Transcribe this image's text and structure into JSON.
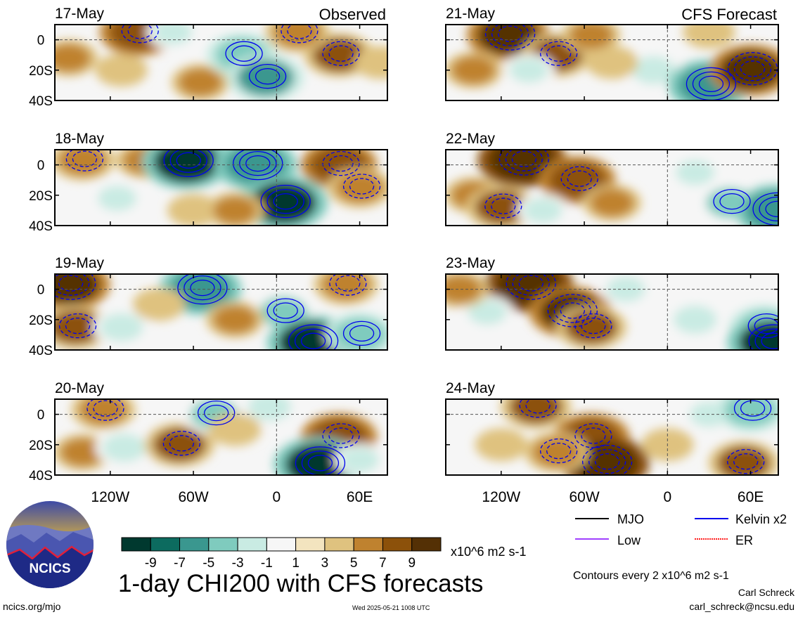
{
  "chart_data": {
    "type": "heatmap",
    "title": "1-day CHI200 with CFS forecasts",
    "units": "x10^6 m2 s-1",
    "contour_note": "Contours every 2 x10^6 m2 s-1",
    "columns": [
      {
        "label": "Observed",
        "panels": [
          {
            "date": "17-May",
            "blobs": [
              {
                "lon": -100,
                "lat": 5,
                "v": 7
              },
              {
                "lon": -150,
                "lat": -12,
                "v": 4
              },
              {
                "lon": -112,
                "lat": -20,
                "v": 3
              },
              {
                "lon": -55,
                "lat": -28,
                "v": 4
              },
              {
                "lon": -25,
                "lat": -10,
                "v": -6
              },
              {
                "lon": -8,
                "lat": -25,
                "v": -7
              },
              {
                "lon": 45,
                "lat": -10,
                "v": 6
              },
              {
                "lon": 15,
                "lat": 5,
                "v": 5
              },
              {
                "lon": 75,
                "lat": -15,
                "v": 3
              },
              {
                "lon": -75,
                "lat": 5,
                "v": -3
              }
            ]
          },
          {
            "date": "18-May",
            "blobs": [
              {
                "lon": -140,
                "lat": 3,
                "v": 5
              },
              {
                "lon": -95,
                "lat": 3,
                "v": 4
              },
              {
                "lon": -65,
                "lat": 2,
                "v": -9
              },
              {
                "lon": -15,
                "lat": 0,
                "v": -8
              },
              {
                "lon": 5,
                "lat": -25,
                "v": -9
              },
              {
                "lon": 45,
                "lat": 0,
                "v": 7
              },
              {
                "lon": 60,
                "lat": -15,
                "v": 5
              },
              {
                "lon": -115,
                "lat": -22,
                "v": -3
              },
              {
                "lon": -60,
                "lat": -30,
                "v": 3
              },
              {
                "lon": -30,
                "lat": -30,
                "v": 4
              }
            ]
          },
          {
            "date": "19-May",
            "blobs": [
              {
                "lon": -150,
                "lat": 3,
                "v": 8
              },
              {
                "lon": -145,
                "lat": -25,
                "v": 6
              },
              {
                "lon": -112,
                "lat": -25,
                "v": -4
              },
              {
                "lon": -55,
                "lat": 0,
                "v": -8
              },
              {
                "lon": 5,
                "lat": -15,
                "v": -5
              },
              {
                "lon": 25,
                "lat": -35,
                "v": -9
              },
              {
                "lon": 60,
                "lat": -30,
                "v": -6
              },
              {
                "lon": -30,
                "lat": -20,
                "v": 4
              },
              {
                "lon": 50,
                "lat": 3,
                "v": 5
              },
              {
                "lon": -85,
                "lat": -10,
                "v": 3
              }
            ]
          },
          {
            "date": "20-May",
            "blobs": [
              {
                "lon": -125,
                "lat": 3,
                "v": 5
              },
              {
                "lon": -140,
                "lat": -25,
                "v": 4
              },
              {
                "lon": -110,
                "lat": -22,
                "v": -4
              },
              {
                "lon": -70,
                "lat": -20,
                "v": 6
              },
              {
                "lon": -45,
                "lat": 0,
                "v": -5
              },
              {
                "lon": -5,
                "lat": 5,
                "v": -4
              },
              {
                "lon": 45,
                "lat": -15,
                "v": 7
              },
              {
                "lon": 30,
                "lat": -33,
                "v": -9
              },
              {
                "lon": -30,
                "lat": -10,
                "v": 3
              },
              {
                "lon": 60,
                "lat": -30,
                "v": -3
              }
            ]
          }
        ]
      },
      {
        "label": "CFS Forecast",
        "panels": [
          {
            "date": "21-May",
            "blobs": [
              {
                "lon": -115,
                "lat": 3,
                "v": 8
              },
              {
                "lon": -80,
                "lat": -10,
                "v": 6
              },
              {
                "lon": -140,
                "lat": -20,
                "v": 4
              },
              {
                "lon": -100,
                "lat": -20,
                "v": -3
              },
              {
                "lon": -10,
                "lat": -20,
                "v": -4
              },
              {
                "lon": 30,
                "lat": -30,
                "v": -8
              },
              {
                "lon": 60,
                "lat": -20,
                "v": 8
              },
              {
                "lon": -40,
                "lat": -15,
                "v": 3
              },
              {
                "lon": 30,
                "lat": 5,
                "v": 3
              },
              {
                "lon": -55,
                "lat": 3,
                "v": 4
              }
            ]
          },
          {
            "date": "22-May",
            "blobs": [
              {
                "lon": -105,
                "lat": 3,
                "v": 9
              },
              {
                "lon": -65,
                "lat": -10,
                "v": 7
              },
              {
                "lon": -140,
                "lat": -20,
                "v": 4
              },
              {
                "lon": -120,
                "lat": -28,
                "v": 6
              },
              {
                "lon": -90,
                "lat": -30,
                "v": -3
              },
              {
                "lon": 20,
                "lat": -5,
                "v": -3
              },
              {
                "lon": 45,
                "lat": -25,
                "v": -5
              },
              {
                "lon": 78,
                "lat": -30,
                "v": -8
              },
              {
                "lon": -40,
                "lat": -25,
                "v": 4
              }
            ]
          },
          {
            "date": "23-May",
            "blobs": [
              {
                "lon": -100,
                "lat": 3,
                "v": 9
              },
              {
                "lon": -70,
                "lat": -15,
                "v": 8
              },
              {
                "lon": -55,
                "lat": -25,
                "v": 6
              },
              {
                "lon": -130,
                "lat": -15,
                "v": -3
              },
              {
                "lon": -30,
                "lat": 0,
                "v": -3
              },
              {
                "lon": 20,
                "lat": -20,
                "v": -4
              },
              {
                "lon": 70,
                "lat": -25,
                "v": -6
              },
              {
                "lon": 75,
                "lat": -35,
                "v": -9
              },
              {
                "lon": -150,
                "lat": 0,
                "v": 4
              }
            ]
          },
          {
            "date": "24-May",
            "blobs": [
              {
                "lon": -95,
                "lat": 5,
                "v": 6
              },
              {
                "lon": -55,
                "lat": -15,
                "v": 7
              },
              {
                "lon": -45,
                "lat": -32,
                "v": 9
              },
              {
                "lon": -120,
                "lat": -20,
                "v": 3
              },
              {
                "lon": -80,
                "lat": -25,
                "v": 5
              },
              {
                "lon": 30,
                "lat": 0,
                "v": -3
              },
              {
                "lon": 60,
                "lat": 3,
                "v": -6
              },
              {
                "lon": 55,
                "lat": -32,
                "v": 6
              },
              {
                "lon": 0,
                "lat": -20,
                "v": 3
              }
            ]
          }
        ]
      }
    ],
    "x_ticks": [
      {
        "label": "120W",
        "lon": -120
      },
      {
        "label": "60W",
        "lon": -60
      },
      {
        "label": "0",
        "lon": 0
      },
      {
        "label": "60E",
        "lon": 60
      }
    ],
    "y_ticks": [
      {
        "label": "0",
        "lat": 0
      },
      {
        "label": "20S",
        "lat": -20
      },
      {
        "label": "40S",
        "lat": -40
      }
    ],
    "xlim": [
      -160,
      80
    ],
    "ylim": [
      -40,
      10
    ],
    "colorbar": {
      "tick_labels": [
        "-9",
        "-7",
        "-5",
        "-3",
        "-1",
        "1",
        "3",
        "5",
        "7",
        "9"
      ],
      "colors": [
        "#00392f",
        "#0c6b5f",
        "#3a978f",
        "#7fcbbe",
        "#c9ebe3",
        "#f6f6f6",
        "#f3e4bf",
        "#dfc27f",
        "#bf822f",
        "#8c510a",
        "#543005"
      ]
    },
    "legend": [
      {
        "label": "MJO",
        "color": "#000000",
        "style": "solid"
      },
      {
        "label": "Kelvin x2",
        "color": "#0000ee",
        "style": "solid"
      },
      {
        "label": "Low",
        "color": "#a040ff",
        "style": "solid"
      },
      {
        "label": "ER",
        "color": "#ff2020",
        "style": "dashed"
      }
    ]
  },
  "footer": {
    "url": "ncics.org/mjo",
    "timestamp": "Wed 2025-05-21 1008 UTC",
    "author": "Carl Schreck",
    "email": "carl_schreck@ncsu.edu"
  },
  "logo": {
    "text": "NCICS"
  }
}
